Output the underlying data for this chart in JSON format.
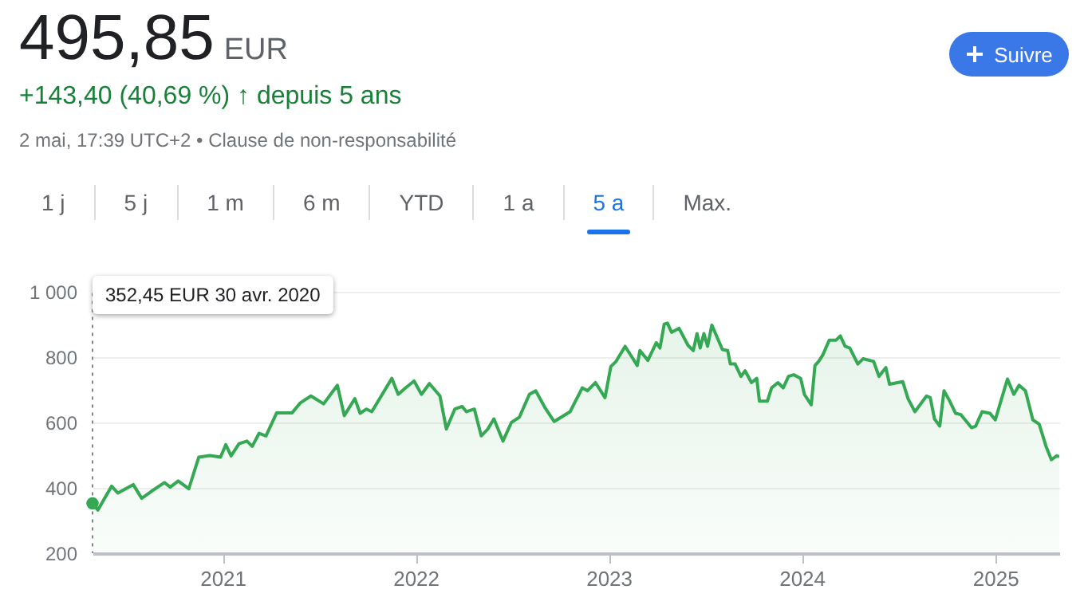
{
  "chart_data": {
    "type": "area",
    "title": "495,85",
    "subtitle": "+143,40 (40,69 %) ↑ depuis 5 ans",
    "annotations": [
      "EUR",
      "2 mai, 17:39 UTC+2 • Clause de non-responsabilité",
      "1 j",
      "5 j",
      "1 m",
      "6 m",
      "YTD",
      "1 a",
      "5 a",
      "Max.",
      "Suivre",
      "352,45 EUR 30 avr. 2020"
    ],
    "x": [
      "2020-04-30",
      "2020-05-10",
      "2020-06-05",
      "2020-06-17",
      "2020-07-16",
      "2020-08-01",
      "2020-08-19",
      "2020-09-13",
      "2020-09-24",
      "2020-10-09",
      "2020-10-29",
      "2020-11-17",
      "2020-12-08",
      "2020-12-28",
      "2021-01-07",
      "2021-01-17",
      "2021-02-01",
      "2021-02-16",
      "2021-02-26",
      "2021-03-11",
      "2021-03-24",
      "2021-04-13",
      "2021-05-12",
      "2021-05-28",
      "2021-06-17",
      "2021-07-11",
      "2021-08-06",
      "2021-08-19",
      "2021-09-08",
      "2021-09-18",
      "2021-09-30",
      "2021-10-10",
      "2021-10-25",
      "2021-11-17",
      "2021-11-29",
      "2021-12-13",
      "2021-12-29",
      "2022-01-12",
      "2022-01-27",
      "2022-02-16",
      "2022-02-28",
      "2022-03-16",
      "2022-03-30",
      "2022-04-07",
      "2022-04-22",
      "2022-05-05",
      "2022-05-17",
      "2022-05-29",
      "2022-06-15",
      "2022-07-01",
      "2022-07-16",
      "2022-08-04",
      "2022-08-16",
      "2022-09-03",
      "2022-09-20",
      "2022-10-20",
      "2022-11-12",
      "2022-11-22",
      "2022-12-07",
      "2022-12-25",
      "2023-01-05",
      "2023-01-15",
      "2023-02-01",
      "2023-02-14",
      "2023-02-24",
      "2023-03-01",
      "2023-03-16",
      "2023-04-01",
      "2023-04-08",
      "2023-04-16",
      "2023-04-22",
      "2023-04-30",
      "2023-05-14",
      "2023-05-31",
      "2023-06-10",
      "2023-06-17",
      "2023-06-23",
      "2023-06-30",
      "2023-07-07",
      "2023-07-15",
      "2023-08-04",
      "2023-08-14",
      "2023-08-19",
      "2023-08-28",
      "2023-09-08",
      "2023-09-16",
      "2023-09-28",
      "2023-10-08",
      "2023-10-13",
      "2023-10-28",
      "2023-11-05",
      "2023-11-17",
      "2023-11-27",
      "2023-12-07",
      "2023-12-17",
      "2023-12-30",
      "2024-01-06",
      "2024-01-19",
      "2024-01-26",
      "2024-02-02",
      "2024-02-10",
      "2024-02-22",
      "2024-03-06",
      "2024-03-14",
      "2024-03-23",
      "2024-04-01",
      "2024-04-16",
      "2024-04-26",
      "2024-05-16",
      "2024-05-26",
      "2024-06-08",
      "2024-06-15",
      "2024-07-10",
      "2024-07-20",
      "2024-08-02",
      "2024-08-24",
      "2024-08-31",
      "2024-09-08",
      "2024-09-18",
      "2024-09-26",
      "2024-10-06",
      "2024-10-18",
      "2024-10-28",
      "2024-11-17",
      "2024-11-25",
      "2024-12-07",
      "2024-12-22",
      "2025-01-01",
      "2025-01-24",
      "2025-02-05",
      "2025-02-15",
      "2025-02-27",
      "2025-03-13",
      "2025-03-25",
      "2025-04-07",
      "2025-04-17",
      "2025-04-27",
      "2025-05-02"
    ],
    "series": [
      {
        "color": "#34a853",
        "values": [
          352.45,
          332,
          405,
          384,
          410,
          368,
          389,
          416,
          402,
          421,
          397,
          494,
          499,
          494,
          532,
          498,
          535,
          543,
          527,
          567,
          559,
          629,
          629,
          660,
          681,
          657,
          714,
          621,
          673,
          628,
          641,
          633,
          673,
          735,
          686,
          706,
          727,
          686,
          719,
          681,
          580,
          641,
          649,
          633,
          641,
          559,
          579,
          611,
          543,
          600,
          616,
          686,
          697,
          644,
          603,
          633,
          706,
          697,
          722,
          676,
          771,
          787,
          833,
          800,
          774,
          820,
          790,
          844,
          828,
          901,
          904,
          876,
          888,
          836,
          820,
          872,
          828,
          872,
          833,
          898,
          823,
          820,
          779,
          779,
          741,
          758,
          722,
          735,
          665,
          665,
          706,
          722,
          706,
          741,
          746,
          735,
          686,
          654,
          774,
          787,
          807,
          852,
          852,
          865,
          833,
          828,
          779,
          795,
          787,
          741,
          768,
          717,
          725,
          673,
          633,
          681,
          676,
          611,
          589,
          697,
          668,
          628,
          624,
          584,
          589,
          633,
          628,
          608,
          733,
          686,
          714,
          697,
          608,
          595,
          527,
          486,
          498,
          495.85
        ]
      }
    ],
    "xlim": [
      "2020-04-30",
      "2025-05-02"
    ],
    "xticks": [
      "2021",
      "2022",
      "2023",
      "2024",
      "2025"
    ],
    "ylim": [
      200,
      1000
    ],
    "yticks": [
      200,
      400,
      600,
      800,
      {
        "value": 1000,
        "label": "1 000"
      }
    ],
    "grid": "y"
  }
}
